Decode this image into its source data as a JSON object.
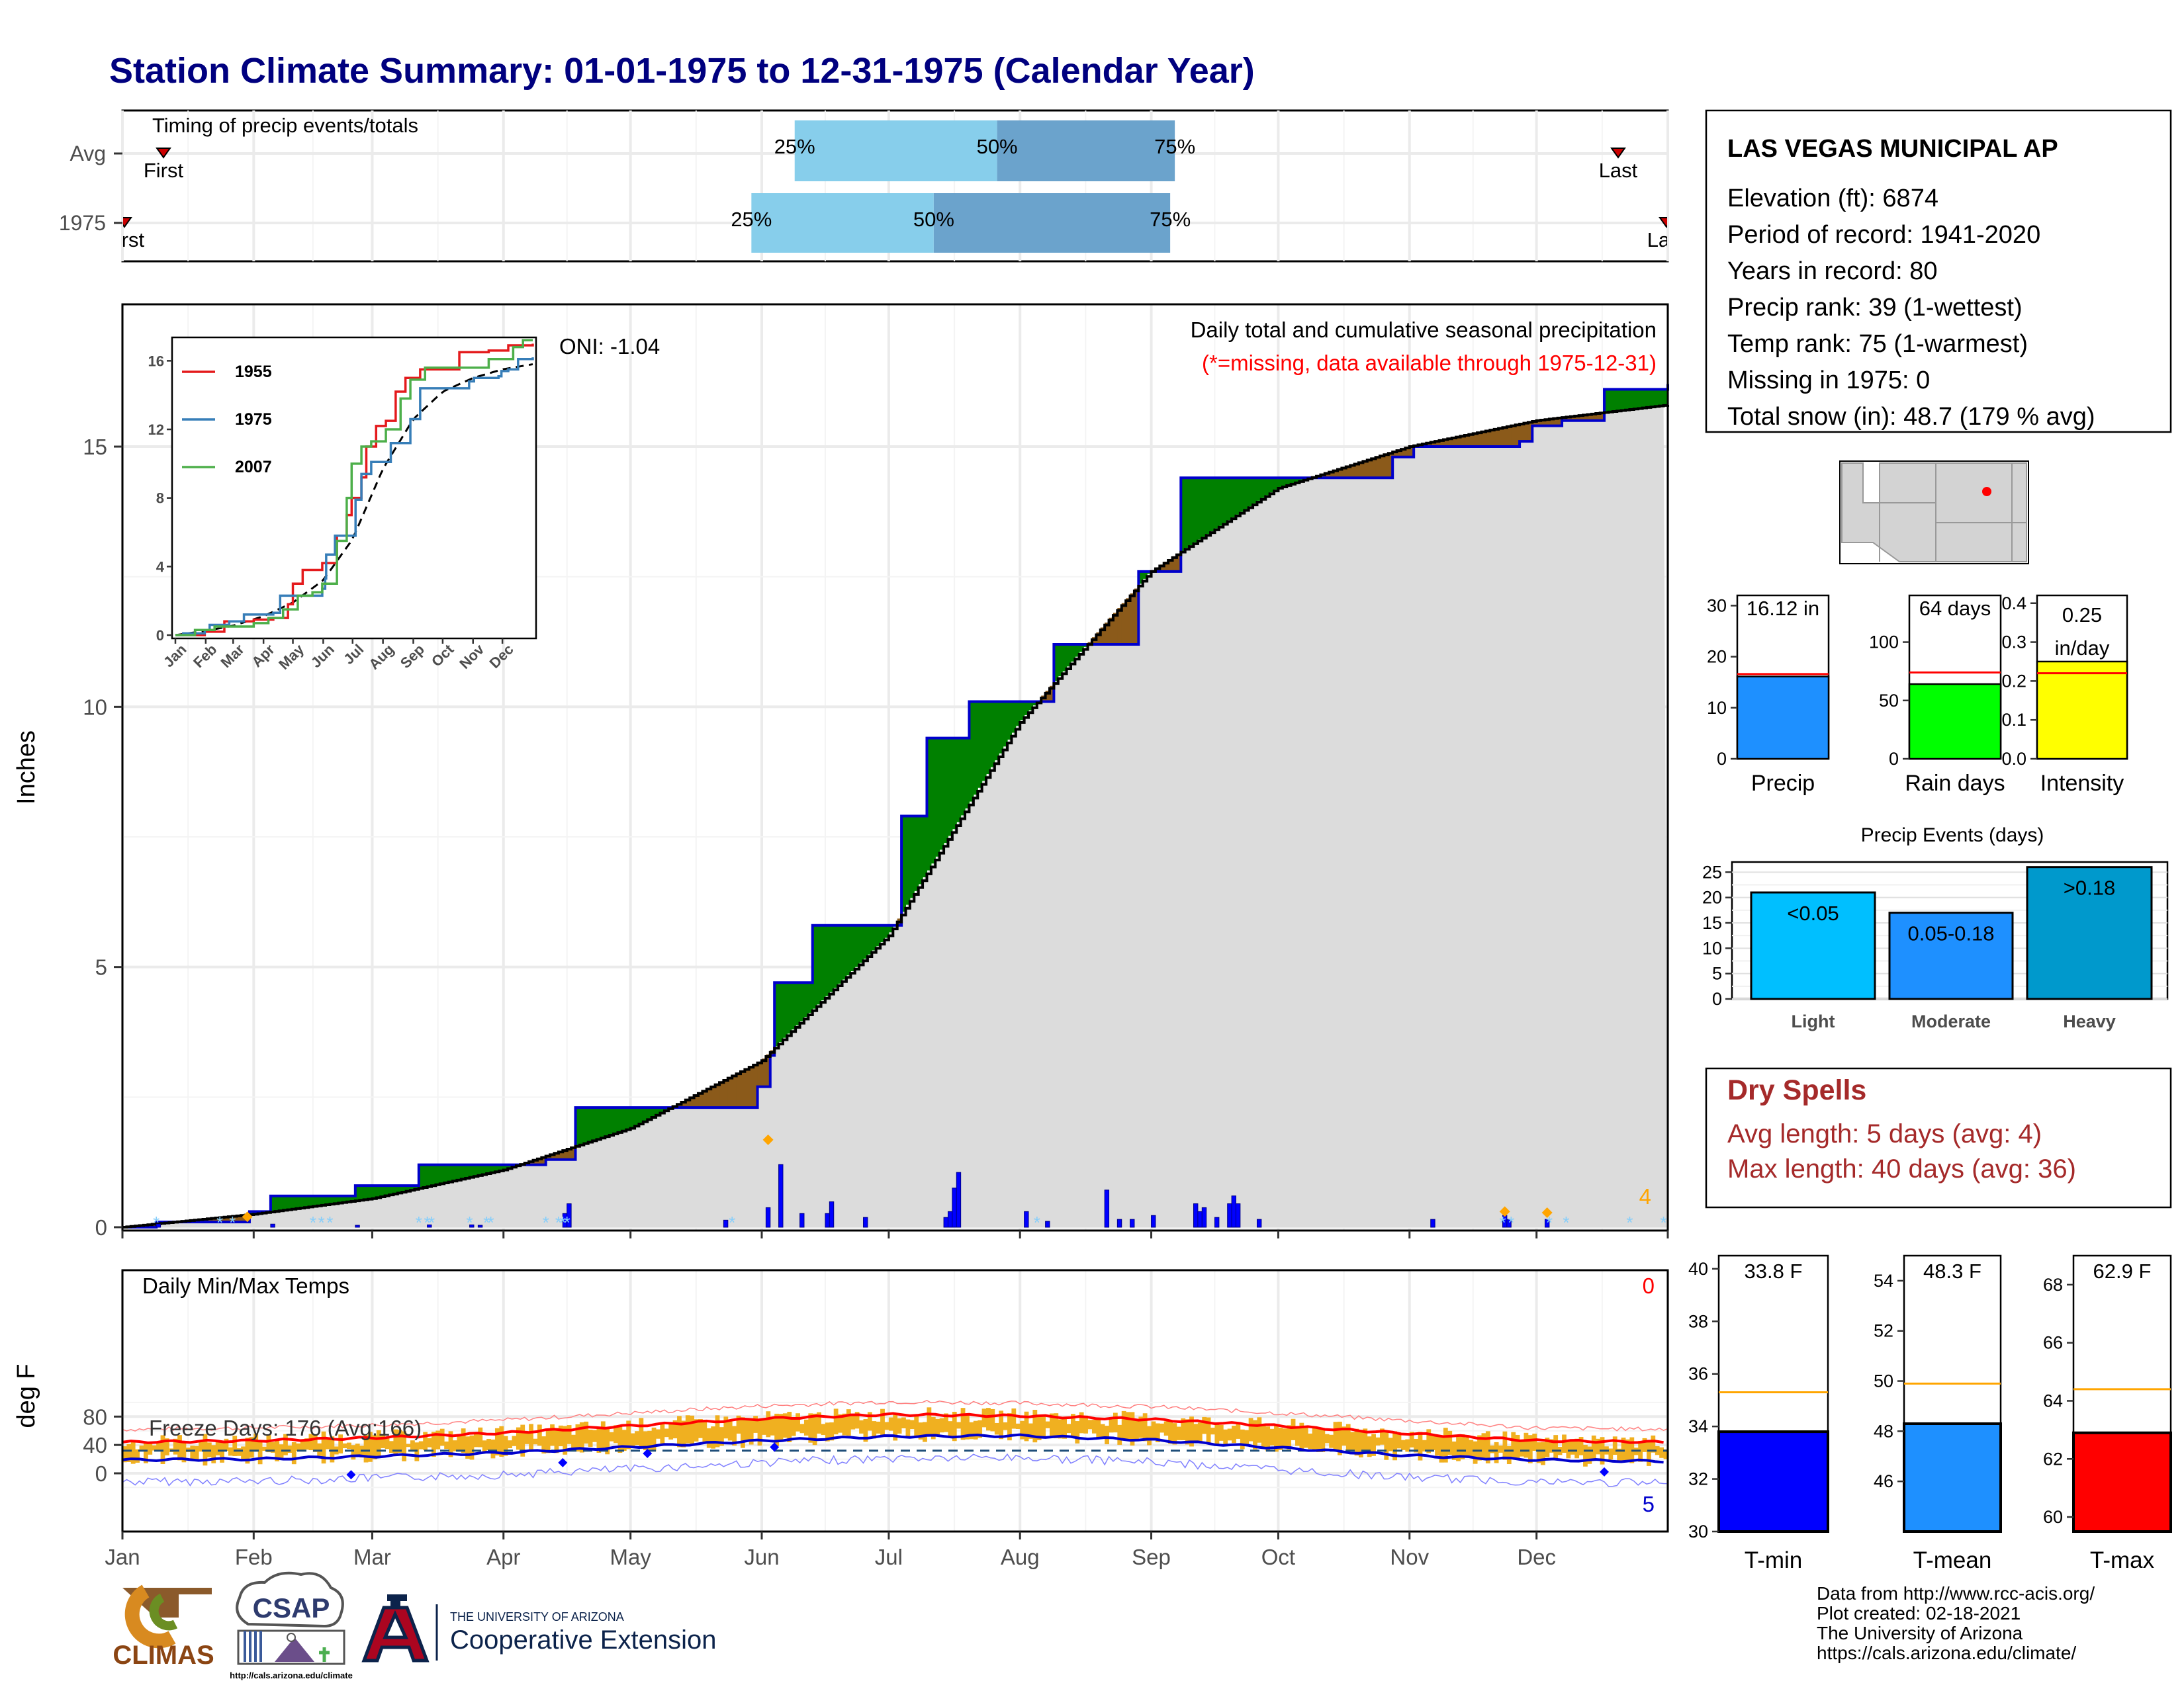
{
  "title": "Station Climate Summary: 01-01-1975 to 12-31-1975 (Calendar Year)",
  "colors": {
    "title": "#00007f",
    "precip_fill": "#008000",
    "deficit_fill": "#8b5a1a",
    "avg_fill": "#dcdcdc",
    "bar_blue": "#0000ff",
    "tmax": "#ff0000",
    "tmin": "#0000cc",
    "temp_bar": "#f0b020",
    "dry": "#a52a2a",
    "light": "#00bfff",
    "moderate": "#1e90ff",
    "heavy": "#0099cc",
    "q_light": "#87ceeb",
    "q_dark": "#6ba3cc"
  },
  "timing": {
    "title": "Timing of precip events/totals",
    "rows": [
      {
        "label": "Avg",
        "first": "First",
        "last": "Last",
        "p25": "25%",
        "p50": "50%",
        "p75": "75%",
        "q": [
          0.435,
          0.566,
          0.681
        ]
      },
      {
        "label": "1975",
        "first": "First",
        "last": "Last",
        "p25": "25%",
        "p50": "50%",
        "p75": "75%",
        "q": [
          0.407,
          0.525,
          0.678
        ]
      }
    ]
  },
  "precip_panel": {
    "ylabel": "Inches",
    "oni": "ONI: -1.04",
    "title": "Daily total and cumulative seasonal precipitation",
    "subtitle": "(*=missing, data available through 1975-12-31)",
    "yticks": [
      "0",
      "5",
      "10",
      "15"
    ],
    "corner_count": "4"
  },
  "inset": {
    "series": [
      {
        "name": "1955",
        "color": "#e41a1c"
      },
      {
        "name": "1975",
        "color": "#377eb8"
      },
      {
        "name": "2007",
        "color": "#4daf4a"
      }
    ],
    "yticks": [
      "0",
      "4",
      "8",
      "12",
      "16"
    ],
    "months": [
      "Jan",
      "Feb",
      "Mar",
      "Apr",
      "May",
      "Jun",
      "Jul",
      "Aug",
      "Sep",
      "Oct",
      "Nov",
      "Dec"
    ]
  },
  "temp_panel": {
    "ylabel": "deg F",
    "title": "Daily Min/Max Temps",
    "freeze": "Freeze Days: 176 (Avg:166)",
    "yticks": [
      "0",
      "40",
      "80"
    ],
    "top_count": "0",
    "bottom_count": "5"
  },
  "months": [
    "Jan",
    "Feb",
    "Mar",
    "Apr",
    "May",
    "Jun",
    "Jul",
    "Aug",
    "Sep",
    "Oct",
    "Nov",
    "Dec"
  ],
  "station": {
    "name": "LAS VEGAS MUNICIPAL AP",
    "lines": [
      "Elevation (ft): 6874",
      "Period of record: 1941-2020",
      "Years in record: 80",
      "Precip rank: 39 (1-wettest)",
      "Temp rank: 75 (1-warmest)",
      "Missing in 1975: 0",
      "Total snow (in): 48.7 (179 % avg)"
    ]
  },
  "summary_bars": [
    {
      "label": "Precip",
      "value_text": "16.12 in",
      "value": 16.12,
      "avg": 16.6,
      "ymax": 32,
      "yticks": [
        "0",
        "10",
        "20",
        "30"
      ],
      "tickvals": [
        0,
        10,
        20,
        30
      ],
      "color": "#1e90ff"
    },
    {
      "label": "Rain days",
      "value_text": "64 days",
      "value": 64,
      "avg": 74,
      "ymax": 140,
      "yticks": [
        "0",
        "50",
        "100"
      ],
      "tickvals": [
        0,
        50,
        100
      ],
      "color": "#00ff00"
    },
    {
      "label": "Intensity",
      "value_text": "0.25 in/day",
      "value": 0.25,
      "avg": 0.22,
      "ymax": 0.42,
      "yticks": [
        "0.0",
        "0.1",
        "0.2",
        "0.3",
        "0.4"
      ],
      "tickvals": [
        0,
        0.1,
        0.2,
        0.3,
        0.4
      ],
      "color": "#ffff00"
    }
  ],
  "events": {
    "title": "Precip Events (days)",
    "yticks": [
      "0",
      "5",
      "10",
      "15",
      "20",
      "25"
    ],
    "bars": [
      {
        "label": "Light",
        "tag": "<0.05",
        "value": 21,
        "color": "#00bfff"
      },
      {
        "label": "Moderate",
        "tag": "0.05-0.18",
        "value": 17,
        "color": "#1e90ff"
      },
      {
        "label": "Heavy",
        "tag": ">0.18",
        "value": 26,
        "color": "#0099cc"
      }
    ]
  },
  "dry_spells": {
    "title": "Dry Spells",
    "avg": "Avg length: 5 days (avg: 4)",
    "max": "Max length: 40 days (avg: 36)"
  },
  "temp_bars": [
    {
      "label": "T-min",
      "value_text": "33.8 F",
      "value": 33.8,
      "avg": 35.3,
      "ymin": 30,
      "ymax": 40.5,
      "yticks": [
        "30",
        "32",
        "34",
        "36",
        "38",
        "40"
      ],
      "tickvals": [
        30,
        32,
        34,
        36,
        38,
        40
      ],
      "color": "#0000ff"
    },
    {
      "label": "T-mean",
      "value_text": "48.3 F",
      "value": 48.3,
      "avg": 49.9,
      "ymin": 44,
      "ymax": 55,
      "yticks": [
        "46",
        "48",
        "50",
        "52",
        "54"
      ],
      "tickvals": [
        46,
        48,
        50,
        52,
        54
      ],
      "color": "#1e90ff"
    },
    {
      "label": "T-max",
      "value_text": "62.9 F",
      "value": 62.9,
      "avg": 64.4,
      "ymin": 59.5,
      "ymax": 69,
      "yticks": [
        "60",
        "62",
        "64",
        "66",
        "68"
      ],
      "tickvals": [
        60,
        62,
        64,
        66,
        68
      ],
      "color": "#ff0000"
    }
  ],
  "footer": {
    "lines": [
      "Data from http://www.rcc-acis.org/",
      "Plot created: 02-18-2021",
      "The University of Arizona",
      "https://cals.arizona.edu/climate/"
    ]
  },
  "logos": {
    "climas": "CLIMAS",
    "csap": "CSAP",
    "csap_url": "http://cals.arizona.edu/climate",
    "ua_small": "THE UNIVERSITY OF ARIZONA",
    "ua_big": "Cooperative Extension"
  },
  "chart_data": [
    {
      "type": "area",
      "title": "Daily total and cumulative seasonal precipitation",
      "ylabel": "Inches",
      "ylim": [
        0,
        17.5
      ],
      "x": [
        "Jan",
        "Feb",
        "Mar",
        "Apr",
        "May",
        "Jun",
        "Jul",
        "Aug",
        "Sep",
        "Oct",
        "Nov",
        "Dec"
      ],
      "series": [
        {
          "name": "1975",
          "values": [
            [
              0,
              0
            ],
            [
              8,
              0.1
            ],
            [
              30,
              0.3
            ],
            [
              35,
              0.6
            ],
            [
              55,
              0.8
            ],
            [
              70,
              1.2
            ],
            [
              100,
              1.3
            ],
            [
              107,
              2.3
            ],
            [
              140,
              2.3
            ],
            [
              150,
              2.7
            ],
            [
              153,
              3.3
            ],
            [
              154,
              4.7
            ],
            [
              163,
              5.8
            ],
            [
              180,
              5.8
            ],
            [
              184,
              7.9
            ],
            [
              190,
              9.4
            ],
            [
              200,
              10.1
            ],
            [
              220,
              11.2
            ],
            [
              240,
              12.6
            ],
            [
              250,
              14.4
            ],
            [
              300,
              14.8
            ],
            [
              305,
              15.0
            ],
            [
              330,
              15.1
            ],
            [
              333,
              15.4
            ],
            [
              340,
              15.5
            ],
            [
              350,
              16.1
            ],
            [
              365,
              16.2
            ]
          ]
        },
        {
          "name": "avg",
          "values": [
            [
              0,
              0
            ],
            [
              31,
              0.25
            ],
            [
              59,
              0.55
            ],
            [
              90,
              1.1
            ],
            [
              120,
              1.9
            ],
            [
              151,
              3.2
            ],
            [
              181,
              5.6
            ],
            [
              212,
              9.7
            ],
            [
              243,
              12.6
            ],
            [
              273,
              14.2
            ],
            [
              304,
              15.0
            ],
            [
              334,
              15.5
            ],
            [
              365,
              15.8
            ]
          ]
        }
      ],
      "daily_precip": [
        [
          8,
          0.08
        ],
        [
          35,
          0.08
        ],
        [
          55,
          0.05
        ],
        [
          72,
          0.06
        ],
        [
          82,
          0.06
        ],
        [
          84,
          0.05
        ],
        [
          104,
          0.35
        ],
        [
          105,
          0.6
        ],
        [
          142,
          0.18
        ],
        [
          152,
          0.5
        ],
        [
          155,
          1.6
        ],
        [
          160,
          0.35
        ],
        [
          166,
          0.35
        ],
        [
          167,
          0.65
        ],
        [
          175,
          0.25
        ],
        [
          194,
          0.25
        ],
        [
          195,
          0.4
        ],
        [
          196,
          1.0
        ],
        [
          197,
          1.4
        ],
        [
          213,
          0.4
        ],
        [
          218,
          0.15
        ],
        [
          232,
          0.95
        ],
        [
          235,
          0.2
        ],
        [
          238,
          0.2
        ],
        [
          243,
          0.3
        ],
        [
          253,
          0.6
        ],
        [
          254,
          0.4
        ],
        [
          255,
          0.5
        ],
        [
          258,
          0.25
        ],
        [
          261,
          0.6
        ],
        [
          262,
          0.8
        ],
        [
          263,
          0.6
        ],
        [
          268,
          0.2
        ],
        [
          309,
          0.2
        ],
        [
          326,
          0.3
        ],
        [
          327,
          0.2
        ],
        [
          336,
          0.2
        ]
      ]
    },
    {
      "type": "line",
      "title": "Daily Min/Max Temps",
      "ylabel": "deg F",
      "ylim": [
        -25,
        103
      ],
      "x": [
        "Jan",
        "Feb",
        "Mar",
        "Apr",
        "May",
        "Jun",
        "Jul",
        "Aug",
        "Sep",
        "Oct",
        "Nov",
        "Dec"
      ],
      "series": [
        {
          "name": "avg max",
          "values": [
            [
              0,
              44
            ],
            [
              31,
              46
            ],
            [
              59,
              50
            ],
            [
              90,
              57
            ],
            [
              120,
              67
            ],
            [
              151,
              77
            ],
            [
              181,
              83
            ],
            [
              212,
              81
            ],
            [
              243,
              76
            ],
            [
              273,
              67
            ],
            [
              304,
              56
            ],
            [
              334,
              46
            ],
            [
              365,
              44
            ]
          ]
        },
        {
          "name": "avg min",
          "values": [
            [
              0,
              19
            ],
            [
              31,
              20
            ],
            [
              59,
              24
            ],
            [
              90,
              29
            ],
            [
              120,
              37
            ],
            [
              151,
              46
            ],
            [
              181,
              52
            ],
            [
              212,
              53
            ],
            [
              243,
              47
            ],
            [
              273,
              36
            ],
            [
              304,
              25
            ],
            [
              334,
              19
            ],
            [
              365,
              17
            ]
          ]
        }
      ],
      "freeze_line": 32
    }
  ]
}
